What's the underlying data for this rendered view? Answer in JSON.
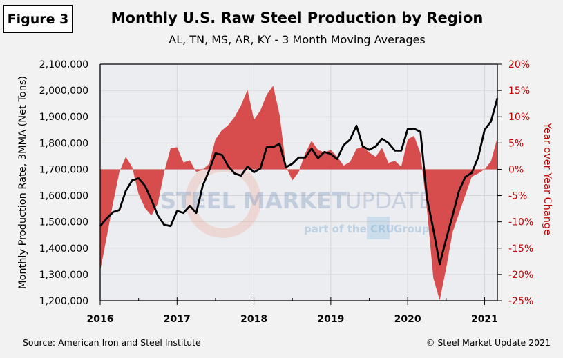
{
  "figure_label": "Figure 3",
  "source": "Source: American Iron and Steel Institute",
  "copyright": "© Steel Market Update 2021",
  "watermark": {
    "main": "STEEL MARKET",
    "light": "UPDATE",
    "sub_prefix": "part of the",
    "sub_badge": "CRU",
    "sub_suffix": "Group"
  },
  "colors": {
    "area": "#d64545",
    "line": "#000000",
    "right_axis": "#c00000",
    "plot_bg": "#ecedf0",
    "grid": "#d6d6d6"
  },
  "chart_data": {
    "type": "line",
    "title": "Monthly U.S. Raw Steel Production by Region",
    "subtitle": "AL, TN, MS, AR, KY - 3 Month Moving Averages",
    "xlabel": "",
    "ylabel": "Monthly Production Rate, 3MMA (Net Tons)",
    "y2label": "Year over Year Change",
    "x_ticks": [
      "2016",
      "2017",
      "2018",
      "2019",
      "2020",
      "2021"
    ],
    "x_range": [
      "2016-01",
      "2021-03"
    ],
    "ylim": [
      1200000,
      2100000
    ],
    "y_ticks": [
      "1,200,000",
      "1,300,000",
      "1,400,000",
      "1,500,000",
      "1,600,000",
      "1,700,000",
      "1,800,000",
      "1,900,000",
      "2,000,000",
      "2,100,000"
    ],
    "y_tick_values": [
      1200000,
      1300000,
      1400000,
      1500000,
      1600000,
      1700000,
      1800000,
      1900000,
      2000000,
      2100000
    ],
    "y2lim": [
      -25,
      20
    ],
    "y2_ticks": [
      "-25%",
      "-20%",
      "-15%",
      "-10%",
      "-5%",
      "0%",
      "5%",
      "10%",
      "15%",
      "20%"
    ],
    "y2_tick_values": [
      -25,
      -20,
      -15,
      -10,
      -5,
      0,
      5,
      10,
      15,
      20
    ],
    "grid": true,
    "legend": "none",
    "x": [
      "2016-01",
      "2016-02",
      "2016-03",
      "2016-04",
      "2016-05",
      "2016-06",
      "2016-07",
      "2016-08",
      "2016-09",
      "2016-10",
      "2016-11",
      "2016-12",
      "2017-01",
      "2017-02",
      "2017-03",
      "2017-04",
      "2017-05",
      "2017-06",
      "2017-07",
      "2017-08",
      "2017-09",
      "2017-10",
      "2017-11",
      "2017-12",
      "2018-01",
      "2018-02",
      "2018-03",
      "2018-04",
      "2018-05",
      "2018-06",
      "2018-07",
      "2018-08",
      "2018-09",
      "2018-10",
      "2018-11",
      "2018-12",
      "2019-01",
      "2019-02",
      "2019-03",
      "2019-04",
      "2019-05",
      "2019-06",
      "2019-07",
      "2019-08",
      "2019-09",
      "2019-10",
      "2019-11",
      "2019-12",
      "2020-01",
      "2020-02",
      "2020-03",
      "2020-04",
      "2020-05",
      "2020-06",
      "2020-07",
      "2020-08",
      "2020-09",
      "2020-10",
      "2020-11",
      "2020-12",
      "2021-01",
      "2021-02",
      "2021-03"
    ],
    "series": [
      {
        "name": "Production 3MMA (Net Tons)",
        "type": "line",
        "axis": "left",
        "values": [
          1484000,
          1513000,
          1537000,
          1545000,
          1618000,
          1658000,
          1666000,
          1637000,
          1584000,
          1524000,
          1489000,
          1484000,
          1542000,
          1534000,
          1561000,
          1534000,
          1637000,
          1695000,
          1761000,
          1755000,
          1711000,
          1684000,
          1676000,
          1711000,
          1689000,
          1703000,
          1784000,
          1784000,
          1797000,
          1708000,
          1721000,
          1745000,
          1745000,
          1779000,
          1742000,
          1766000,
          1758000,
          1739000,
          1792000,
          1813000,
          1866000,
          1787000,
          1774000,
          1787000,
          1816000,
          1800000,
          1771000,
          1771000,
          1853000,
          1855000,
          1842000,
          1592000,
          1471000,
          1339000,
          1434000,
          1524000,
          1618000,
          1671000,
          1687000,
          1745000,
          1850000,
          1882000,
          1971000
        ]
      },
      {
        "name": "Year over Year Change (%)",
        "type": "area",
        "axis": "right",
        "values": [
          -19.3,
          -13.0,
          -6.5,
          -0.5,
          2.4,
          0.4,
          -4.7,
          -7.4,
          -8.8,
          -6.5,
          -0.5,
          4.0,
          4.2,
          1.3,
          1.7,
          -0.5,
          -0.1,
          1.0,
          5.7,
          7.4,
          8.4,
          10.0,
          12.2,
          15.1,
          9.4,
          11.2,
          14.2,
          15.9,
          10.4,
          0.5,
          -2.1,
          -0.5,
          3.0,
          5.4,
          3.7,
          3.2,
          3.7,
          2.4,
          0.7,
          1.4,
          3.9,
          4.3,
          3.2,
          2.4,
          4.1,
          1.2,
          1.6,
          0.5,
          5.7,
          6.4,
          3.0,
          -7.5,
          -20.7,
          -24.9,
          -18.9,
          -12.0,
          -8.4,
          -4.9,
          -1.4,
          -0.8,
          0.0,
          1.5,
          6.0
        ]
      }
    ]
  }
}
